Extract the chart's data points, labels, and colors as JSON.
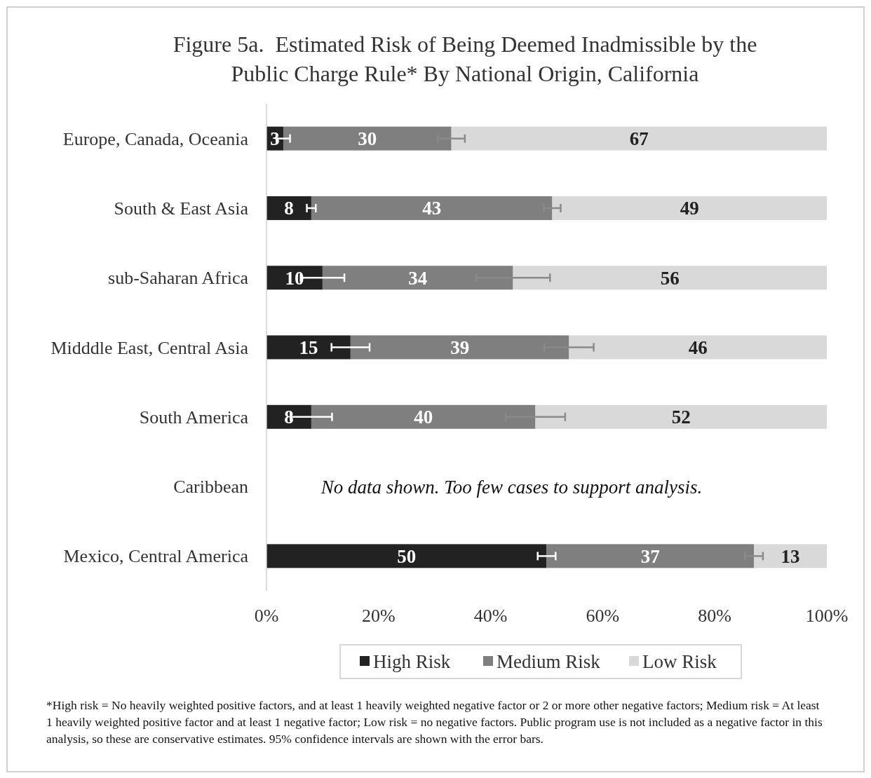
{
  "chart_data": {
    "type": "bar",
    "orientation": "horizontal",
    "stacked": true,
    "title": "Figure 5a.  Estimated Risk of Being Deemed Inadmissible by the Public Charge Rule* By National Origin, California",
    "categories": [
      "Europe, Canada, Oceania",
      "South & East Asia",
      "sub-Saharan Africa",
      "Midddle East, Central Asia",
      "South America",
      "Caribbean",
      "Mexico, Central America"
    ],
    "series": [
      {
        "name": "High Risk",
        "color": "#222222",
        "values": [
          3,
          8,
          10,
          15,
          8,
          null,
          50
        ],
        "errors": [
          1.2,
          0.8,
          3.9,
          3.4,
          3.7,
          null,
          1.6
        ]
      },
      {
        "name": "Medium Risk",
        "color": "#7f7f7f",
        "values": [
          30,
          43,
          34,
          39,
          40,
          null,
          37
        ],
        "errors": [
          2.4,
          1.5,
          6.6,
          4.4,
          5.3,
          null,
          1.6
        ]
      },
      {
        "name": "Low Risk",
        "color": "#d9d9d9",
        "values": [
          67,
          49,
          56,
          46,
          52,
          null,
          13
        ]
      }
    ],
    "xlim": [
      0,
      100
    ],
    "xticks": [
      {
        "value": 0,
        "label": "0%"
      },
      {
        "value": 20,
        "label": "20%"
      },
      {
        "value": 40,
        "label": "40%"
      },
      {
        "value": 60,
        "label": "60%"
      },
      {
        "value": 80,
        "label": "80%"
      },
      {
        "value": 100,
        "label": "100%"
      }
    ],
    "data_labels": true,
    "legend": "bottom",
    "grid": false,
    "annotations": [
      "No data shown. Too few cases to support analysis.",
      "*High risk = No heavily weighted positive factors, and at least 1 heavily weighted negative factor or 2 or more other negative factors; Medium risk = At least 1 heavily weighted positive factor and at least 1 negative factor; Low risk = no negative factors. Public program use is not included as a negative factor in this analysis, so these are conservative estimates.  95% confidence intervals are shown with the error bars."
    ]
  }
}
